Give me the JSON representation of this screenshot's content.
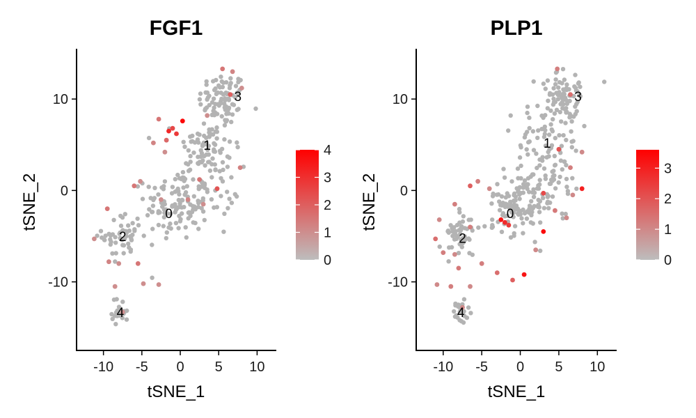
{
  "chart_data": [
    {
      "type": "scatter",
      "title": "FGF1",
      "xlabel": "tSNE_1",
      "ylabel": "tSNE_2",
      "xlim": [
        -13.5,
        12.5
      ],
      "ylim": [
        -17.5,
        15.5
      ],
      "xticks": [
        -10,
        -5,
        0,
        5,
        10
      ],
      "yticks": [
        -10,
        0,
        10
      ],
      "xtick_labels": [
        "-10",
        "-5",
        "0",
        "5",
        "10"
      ],
      "ytick_labels": [
        "-10",
        "0",
        "10"
      ],
      "grid": false,
      "legend": {
        "placement": "right",
        "min": 0,
        "max": 4,
        "ticks": [
          0,
          1,
          2,
          3,
          4
        ],
        "tick_labels": [
          "0",
          "1",
          "2",
          "3",
          "4"
        ],
        "low_color": "#bdbdbd",
        "high_color": "#ff0000"
      },
      "cluster_labels": [
        {
          "text": "0",
          "x": -1.5,
          "y": -2.5
        },
        {
          "text": "1",
          "x": 3.5,
          "y": 5.0
        },
        {
          "text": "2",
          "x": -7.5,
          "y": -5.0
        },
        {
          "text": "3",
          "x": 7.5,
          "y": 10.3
        },
        {
          "text": "4",
          "x": -7.8,
          "y": -13.3
        }
      ],
      "expressing_points": [
        {
          "x": -2.8,
          "y": 7.8,
          "v": 1.5
        },
        {
          "x": -1.5,
          "y": 6.5,
          "v": 3.2
        },
        {
          "x": -1.0,
          "y": 6.8,
          "v": 2.5
        },
        {
          "x": -0.5,
          "y": 6.2,
          "v": 2.8
        },
        {
          "x": 0.3,
          "y": 7.6,
          "v": 3.8
        },
        {
          "x": -1.8,
          "y": 5.5,
          "v": 1.8
        },
        {
          "x": -3.5,
          "y": 5.2,
          "v": 1.2
        },
        {
          "x": -2.0,
          "y": 4.2,
          "v": 1.0
        },
        {
          "x": 5.5,
          "y": 13.3,
          "v": 1.5
        },
        {
          "x": 6.8,
          "y": 13.0,
          "v": 1.2
        },
        {
          "x": 6.5,
          "y": 10.5,
          "v": 2.0
        },
        {
          "x": 8.0,
          "y": 11.2,
          "v": 1.0
        },
        {
          "x": 2.5,
          "y": 1.2,
          "v": 1.5
        },
        {
          "x": 4.8,
          "y": 0.2,
          "v": 2.2
        },
        {
          "x": 3.0,
          "y": -1.5,
          "v": 1.0
        },
        {
          "x": 1.0,
          "y": -1.0,
          "v": 1.2
        },
        {
          "x": 7.8,
          "y": 2.5,
          "v": 1.3
        },
        {
          "x": -6.0,
          "y": 0.5,
          "v": 1.5
        },
        {
          "x": -5.2,
          "y": 1.0,
          "v": 1.0
        },
        {
          "x": -9.5,
          "y": -2.0,
          "v": 1.5
        },
        {
          "x": -11.2,
          "y": -5.3,
          "v": 1.0
        },
        {
          "x": -9.3,
          "y": -7.8,
          "v": 1.2
        },
        {
          "x": -5.5,
          "y": -8.0,
          "v": 1.5
        },
        {
          "x": -8.0,
          "y": -8.0,
          "v": 1.0
        },
        {
          "x": -2.8,
          "y": -10.3,
          "v": 1.0
        },
        {
          "x": -4.8,
          "y": -10.2,
          "v": 1.0
        },
        {
          "x": -8.5,
          "y": -10.5,
          "v": 1.0
        },
        {
          "x": -7.5,
          "y": -13.3,
          "v": 1.0
        },
        {
          "x": -2.5,
          "y": -1.0,
          "v": 1.0
        },
        {
          "x": 3.5,
          "y": 8.2,
          "v": 1.0
        }
      ]
    },
    {
      "type": "scatter",
      "title": "PLP1",
      "xlabel": "tSNE_1",
      "ylabel": "tSNE_2",
      "xlim": [
        -13.5,
        12.5
      ],
      "ylim": [
        -17.5,
        15.5
      ],
      "xticks": [
        -10,
        -5,
        0,
        5,
        10
      ],
      "yticks": [
        -10,
        0,
        10
      ],
      "xtick_labels": [
        "-10",
        "-5",
        "0",
        "5",
        "10"
      ],
      "ytick_labels": [
        "-10",
        "0",
        "10"
      ],
      "grid": false,
      "legend": {
        "placement": "right",
        "min": 0,
        "max": 3.6,
        "ticks": [
          0,
          1,
          2,
          3
        ],
        "tick_labels": [
          "0",
          "1",
          "2",
          "3"
        ],
        "low_color": "#bdbdbd",
        "high_color": "#ff0000"
      },
      "cluster_labels": [
        {
          "text": "0",
          "x": -1.3,
          "y": -2.5
        },
        {
          "text": "1",
          "x": 3.5,
          "y": 5.2
        },
        {
          "text": "2",
          "x": -7.5,
          "y": -5.2
        },
        {
          "text": "3",
          "x": 7.5,
          "y": 10.3
        },
        {
          "text": "4",
          "x": -7.7,
          "y": -13.3
        }
      ],
      "expressing_points": [
        {
          "x": -2.5,
          "y": -3.2,
          "v": 3.2
        },
        {
          "x": -2.0,
          "y": -3.5,
          "v": 2.8
        },
        {
          "x": -1.5,
          "y": -3.8,
          "v": 2.5
        },
        {
          "x": 3.0,
          "y": -4.5,
          "v": 3.4
        },
        {
          "x": 0.5,
          "y": -9.2,
          "v": 3.2
        },
        {
          "x": 8.0,
          "y": 0.2,
          "v": 3.0
        },
        {
          "x": 3.0,
          "y": -0.3,
          "v": 2.2
        },
        {
          "x": 5.0,
          "y": 4.5,
          "v": 2.0
        },
        {
          "x": 6.5,
          "y": 10.5,
          "v": 1.5
        },
        {
          "x": 4.8,
          "y": 13.3,
          "v": 1.2
        },
        {
          "x": 8.0,
          "y": 4.2,
          "v": 1.0
        },
        {
          "x": 6.5,
          "y": 2.5,
          "v": 1.2
        },
        {
          "x": 6.8,
          "y": -0.5,
          "v": 1.0
        },
        {
          "x": 4.5,
          "y": -2.2,
          "v": 1.3
        },
        {
          "x": 6.0,
          "y": -3.0,
          "v": 1.0
        },
        {
          "x": -6.5,
          "y": 0.5,
          "v": 1.8
        },
        {
          "x": -5.5,
          "y": 1.0,
          "v": 1.2
        },
        {
          "x": -4.0,
          "y": 0.2,
          "v": 1.0
        },
        {
          "x": -8.5,
          "y": -1.5,
          "v": 1.2
        },
        {
          "x": -10.5,
          "y": -3.2,
          "v": 1.0
        },
        {
          "x": -11.0,
          "y": -5.3,
          "v": 1.5
        },
        {
          "x": -10.0,
          "y": -6.8,
          "v": 1.2
        },
        {
          "x": -8.5,
          "y": -7.0,
          "v": 1.0
        },
        {
          "x": -8.0,
          "y": -8.5,
          "v": 1.3
        },
        {
          "x": -10.8,
          "y": -10.3,
          "v": 1.0
        },
        {
          "x": -9.0,
          "y": -10.5,
          "v": 1.2
        },
        {
          "x": -6.5,
          "y": -10.5,
          "v": 1.0
        },
        {
          "x": -5.0,
          "y": -8.0,
          "v": 1.2
        },
        {
          "x": -3.0,
          "y": -9.0,
          "v": 1.5
        },
        {
          "x": -1.0,
          "y": -9.8,
          "v": 1.8
        },
        {
          "x": -7.5,
          "y": -12.8,
          "v": 1.0
        },
        {
          "x": -6.5,
          "y": -4.0,
          "v": 1.2
        },
        {
          "x": 2.0,
          "y": -6.5,
          "v": 1.0
        }
      ]
    }
  ]
}
